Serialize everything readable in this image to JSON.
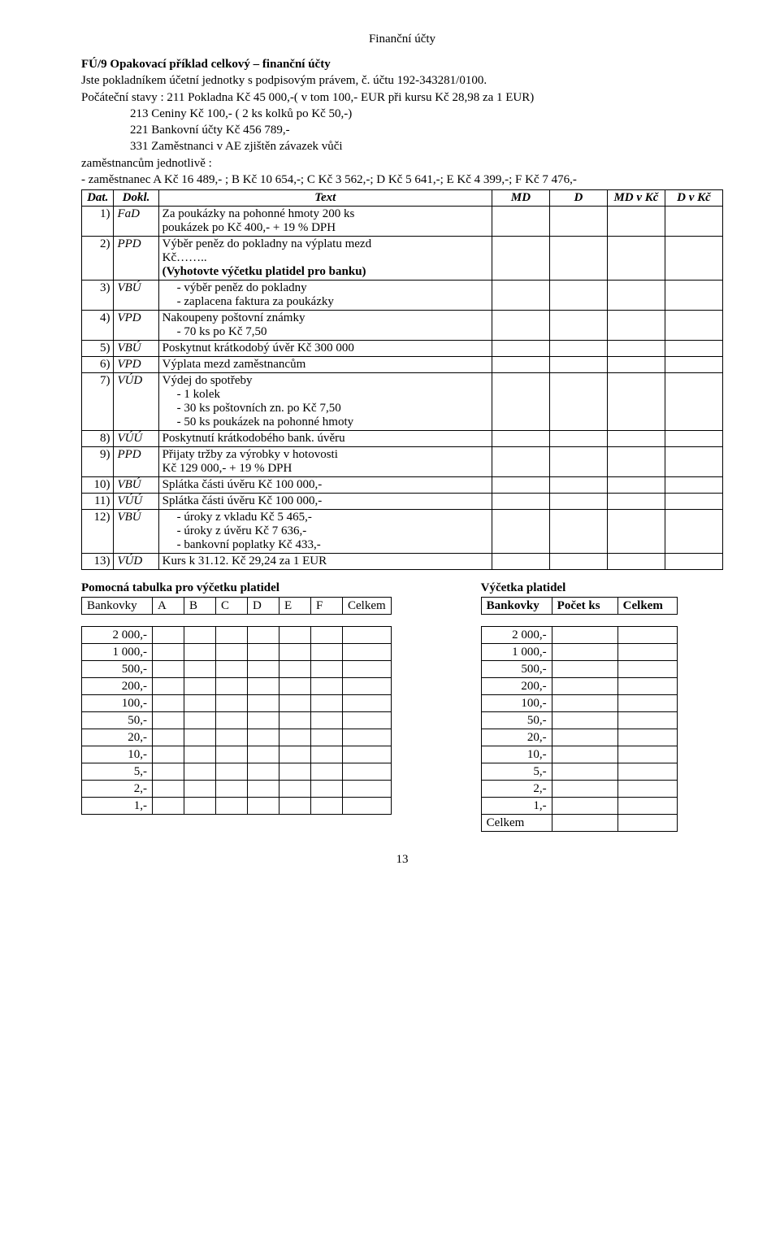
{
  "page_title": "Finanční účty",
  "heading": "FÚ/9 Opakovací příklad celkový – finanční účty",
  "subheading": "Jste pokladníkem účetní jednotky s podpisovým právem, č. účtu 192-343281/0100.",
  "initial_intro": "Počáteční stavy : 211 Pokladna Kč 45 000,-( v tom 100,- EUR při kursu Kč 28,98 za 1 EUR)",
  "initial_lines": [
    "213 Ceniny Kč 100,- ( 2 ks kolků po Kč 50,-)",
    "221 Bankovní účty Kč 456 789,-",
    "331 Zaměstnanci v AE zjištěn závazek vůči"
  ],
  "emp_line1": "zaměstnancům jednotlivě :",
  "emp_line2": "- zaměstnanec A Kč 16 489,- ; B Kč 10 654,-; C Kč 3 562,-; D Kč 5 641,-; E Kč 4 399,-;  F Kč 7 476,-",
  "columns": {
    "dat": "Dat.",
    "dokl": "Dokl.",
    "text": "Text",
    "md": "MD",
    "d": "D",
    "mdvkc": "MD v Kč",
    "dvkc": "D v Kč"
  },
  "rows": [
    {
      "n": "1)",
      "dokl": "FaD",
      "lines": [
        "Za poukázky na pohonné hmoty 200 ks",
        "poukázek po Kč 400,- + 19 % DPH"
      ]
    },
    {
      "n": "2)",
      "dokl": "PPD",
      "lines": [
        "Výběr peněz do pokladny na výplatu mezd",
        "Kč……..",
        {
          "t": "(Vyhotovte výčetku platidel pro banku)",
          "bold": true
        }
      ]
    },
    {
      "n": "3)",
      "dokl": "VBÚ",
      "lines": [
        {
          "t": "výběr peněz do pokladny",
          "dash": true
        },
        {
          "t": "zaplacena faktura za poukázky",
          "dash": true
        }
      ]
    },
    {
      "n": "4)",
      "dokl": "VPD",
      "lines": [
        "Nakoupeny poštovní známky",
        {
          "t": "70 ks po Kč 7,50",
          "dash": true
        }
      ]
    },
    {
      "n": "5)",
      "dokl": "VBÚ",
      "lines": [
        "Poskytnut krátkodobý úvěr Kč 300 000"
      ]
    },
    {
      "n": "6)",
      "dokl": "VPD",
      "lines": [
        "Výplata mezd zaměstnancům"
      ]
    },
    {
      "n": "7)",
      "dokl": "VÚD",
      "lines": [
        "Výdej do spotřeby",
        {
          "t": "1 kolek",
          "dash": true
        },
        {
          "t": "30 ks poštovních zn. po Kč 7,50",
          "dash": true
        },
        {
          "t": "50 ks poukázek na pohonné hmoty",
          "dash": true
        }
      ]
    },
    {
      "n": "8)",
      "dokl": "VÚÚ",
      "lines": [
        "Poskytnutí krátkodobého bank. úvěru"
      ]
    },
    {
      "n": "9)",
      "dokl": "PPD",
      "lines": [
        "Přijaty tržby za výrobky v hotovosti",
        "Kč 129 000,- + 19 % DPH"
      ]
    },
    {
      "n": "10)",
      "dokl": "VBÚ",
      "lines": [
        "Splátka části úvěru Kč 100 000,-"
      ]
    },
    {
      "n": "11)",
      "dokl": "VÚÚ",
      "lines": [
        "Splátka části úvěru Kč 100 000,-"
      ]
    },
    {
      "n": "12)",
      "dokl": "VBÚ",
      "lines": [
        {
          "t": "úroky z vkladu Kč 5 465,-",
          "dash": true
        },
        {
          "t": "úroky z úvěru Kč 7 636,-",
          "dash": true
        },
        {
          "t": "bankovní poplatky Kč 433,-",
          "dash": true
        }
      ]
    },
    {
      "n": "13)",
      "dokl": "VÚD",
      "lines": [
        "Kurs k 31.12. Kč 29,24 za 1 EUR",
        " "
      ]
    }
  ],
  "aux1": {
    "title": "Pomocná tabulka pro výčetku platidel",
    "headers": [
      "Bankovky",
      "A",
      "B",
      "C",
      "D",
      "E",
      "F",
      "Celkem"
    ],
    "labels": [
      "2 000,-",
      "1 000,-",
      "500,-",
      "200,-",
      "100,-",
      "50,-",
      "20,-",
      "10,-",
      "5,-",
      "2,-",
      "1,-"
    ]
  },
  "aux2": {
    "title": "Výčetka platidel",
    "headers": [
      "Bankovky",
      "Počet ks",
      "Celkem"
    ],
    "labels": [
      "2 000,-",
      "1 000,-",
      "500,-",
      "200,-",
      "100,-",
      "50,-",
      "20,-",
      "10,-",
      "5,-",
      "2,-",
      "1,-",
      "Celkem"
    ]
  },
  "page_number": "13",
  "style": {
    "font_family": "Times New Roman",
    "body_font_size_pt": 11,
    "text_color": "#000000",
    "background_color": "#ffffff",
    "border_color": "#000000"
  }
}
